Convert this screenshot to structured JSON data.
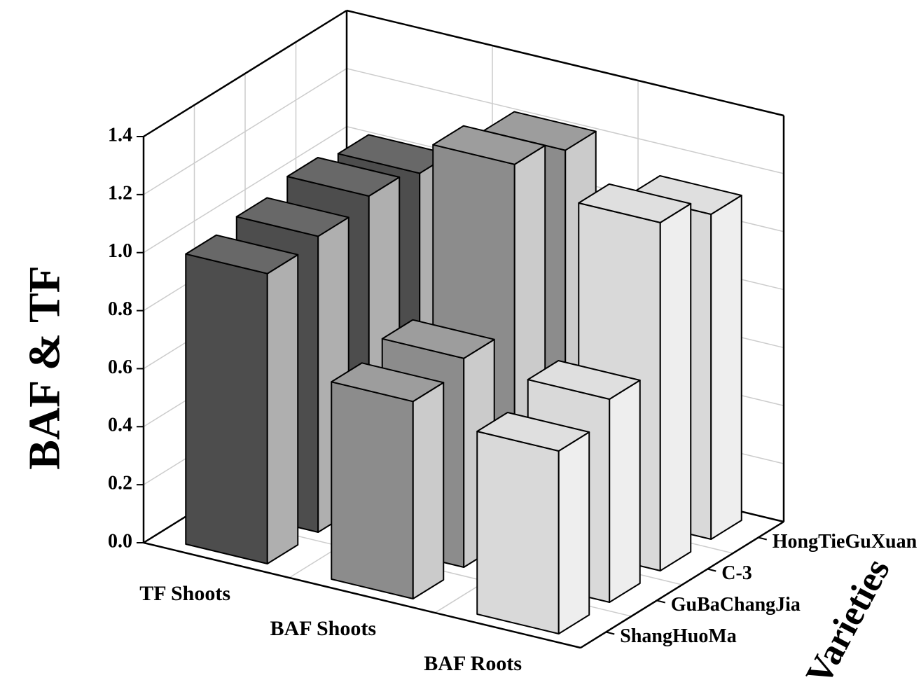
{
  "chart_data": {
    "type": "bar3d",
    "y_label": "BAF & TF",
    "z_label": "Varieties",
    "categories": [
      "ShangHuoMa",
      "GuBaChangJia",
      "C-3",
      "HongTieGuXuan"
    ],
    "series": [
      {
        "name": "TF Shoots",
        "color": "#4d4d4d",
        "values": [
          1.0,
          1.02,
          1.05,
          1.02
        ]
      },
      {
        "name": "BAF Shoots",
        "color": "#8c8c8c",
        "values": [
          0.68,
          0.72,
          1.28,
          1.22
        ]
      },
      {
        "name": "BAF Roots",
        "color": "#d9d9d9",
        "values": [
          0.63,
          0.7,
          1.2,
          1.12
        ]
      }
    ],
    "ylim": [
      0,
      1.4
    ],
    "yticks": [
      {
        "value": 0,
        "label": "0.0"
      },
      {
        "value": 0.2,
        "label": "0.2"
      },
      {
        "value": 0.4,
        "label": "0.4"
      },
      {
        "value": 0.6,
        "label": "0.6"
      },
      {
        "value": 0.8,
        "label": "0.8"
      },
      {
        "value": 1,
        "label": "1.0"
      },
      {
        "value": 1.2,
        "label": "1.2"
      },
      {
        "value": 1.4,
        "label": "1.4"
      }
    ],
    "grid": true
  }
}
